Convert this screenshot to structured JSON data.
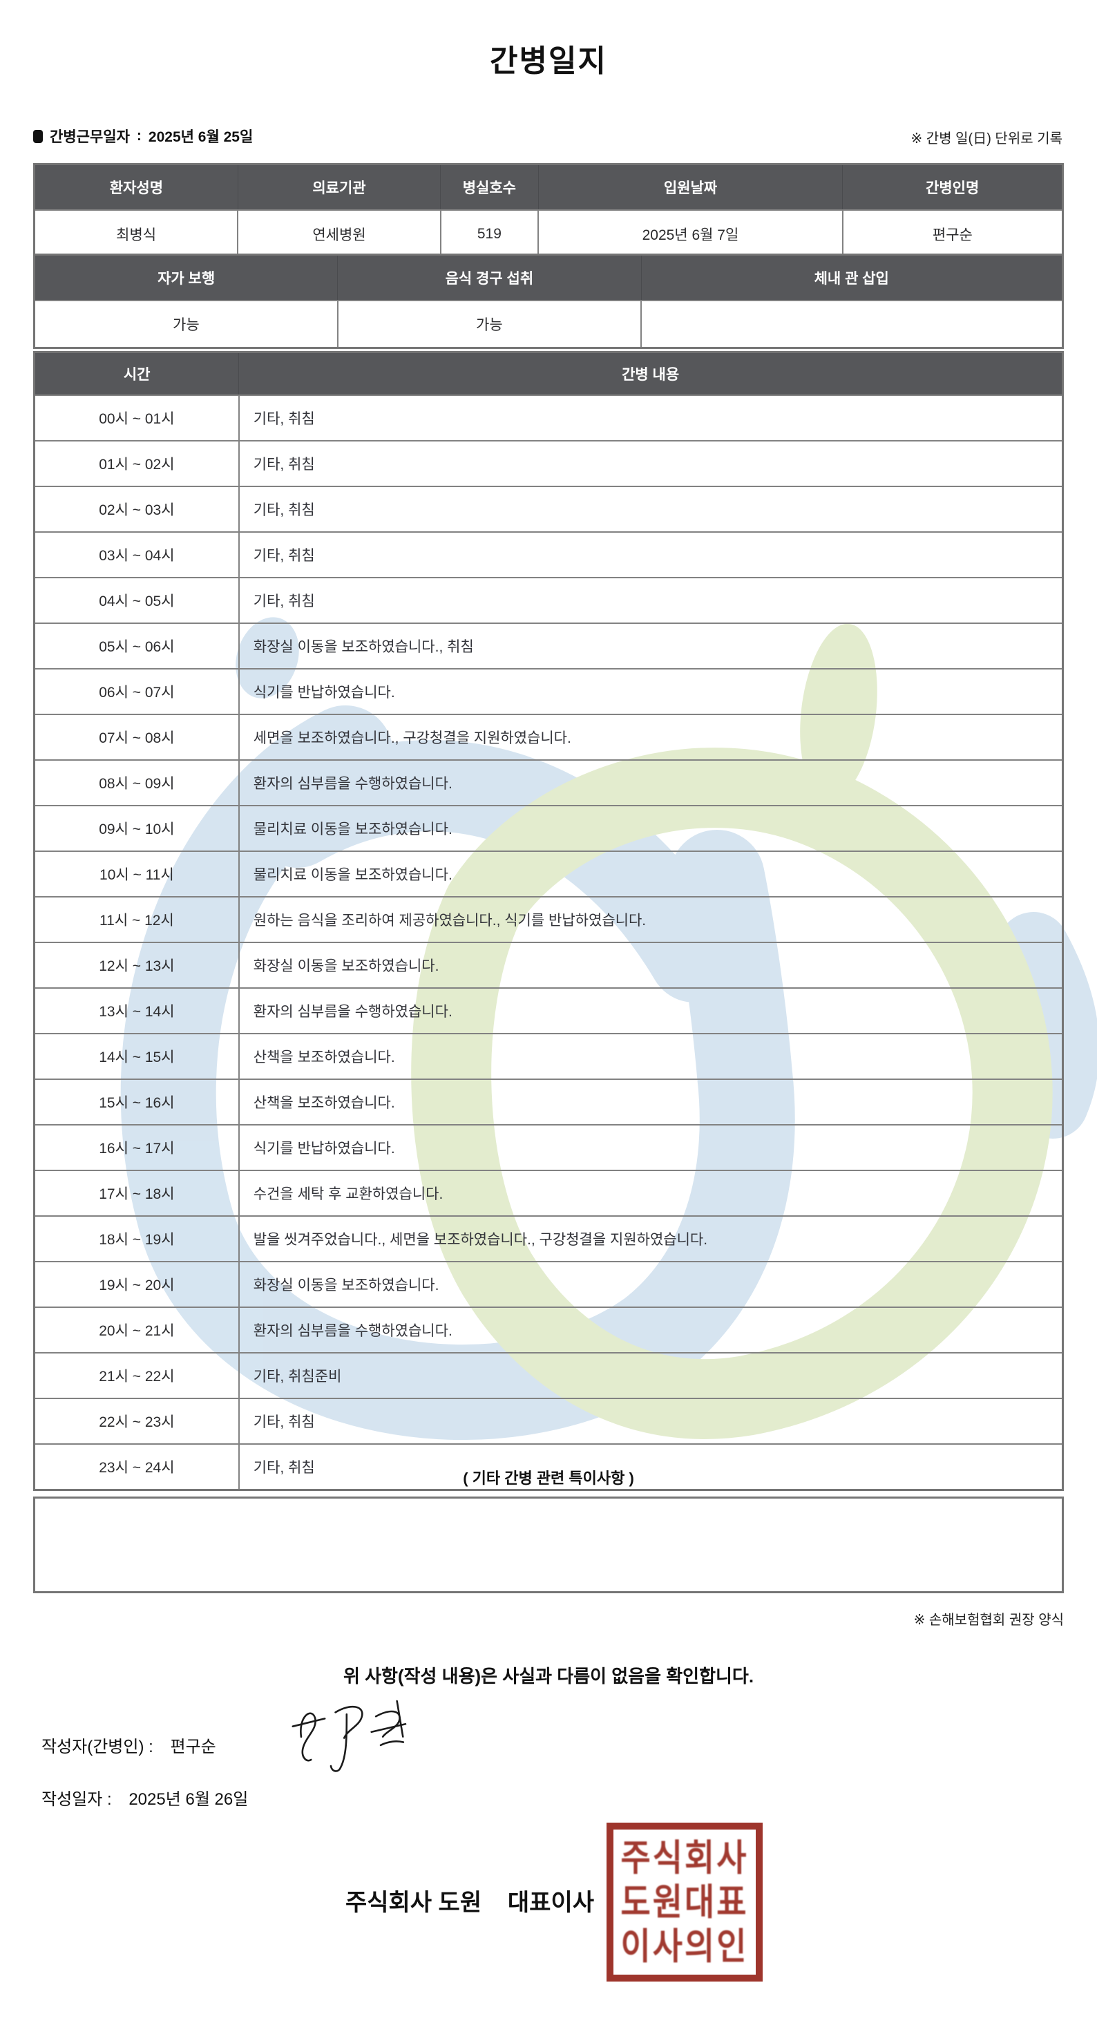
{
  "page": {
    "title": "간병일지"
  },
  "meta": {
    "work_date_label": "간병근무일자",
    "separator": ":",
    "work_date": "2025년 6월 25일",
    "unit_note": "※ 간병 일(日) 단위로 기록"
  },
  "patient_table": {
    "headers": [
      "환자성명",
      "의료기관",
      "병실호수",
      "입원날짜",
      "간병인명"
    ],
    "values": [
      "최병식",
      "연세병원",
      "519",
      "2025년 6월 7일",
      "편구순"
    ]
  },
  "condition_table": {
    "headers": [
      "자가 보행",
      "음식 경구 섭취",
      "체내 관 삽입"
    ],
    "values": [
      "가능",
      "가능",
      ""
    ]
  },
  "care_table": {
    "headers": {
      "time": "시간",
      "content": "간병 내용"
    },
    "rows": [
      {
        "time": "00시 ~ 01시",
        "content": "기타, 취침"
      },
      {
        "time": "01시 ~ 02시",
        "content": "기타, 취침"
      },
      {
        "time": "02시 ~ 03시",
        "content": "기타, 취침"
      },
      {
        "time": "03시 ~ 04시",
        "content": "기타, 취침"
      },
      {
        "time": "04시 ~ 05시",
        "content": "기타, 취침"
      },
      {
        "time": "05시 ~ 06시",
        "content": "화장실 이동을 보조하였습니다., 취침"
      },
      {
        "time": "06시 ~ 07시",
        "content": "식기를 반납하였습니다."
      },
      {
        "time": "07시 ~ 08시",
        "content": "세면을 보조하였습니다., 구강청결을 지원하였습니다."
      },
      {
        "time": "08시 ~ 09시",
        "content": "환자의 심부름을 수행하였습니다."
      },
      {
        "time": "09시 ~ 10시",
        "content": "물리치료 이동을 보조하였습니다."
      },
      {
        "time": "10시 ~ 11시",
        "content": "물리치료 이동을 보조하였습니다."
      },
      {
        "time": "11시 ~ 12시",
        "content": "원하는 음식을 조리하여 제공하였습니다., 식기를 반납하였습니다."
      },
      {
        "time": "12시 ~ 13시",
        "content": "화장실 이동을 보조하였습니다."
      },
      {
        "time": "13시 ~ 14시",
        "content": "환자의 심부름을 수행하였습니다."
      },
      {
        "time": "14시 ~ 15시",
        "content": "산책을 보조하였습니다."
      },
      {
        "time": "15시 ~ 16시",
        "content": "산책을 보조하였습니다."
      },
      {
        "time": "16시 ~ 17시",
        "content": "식기를 반납하였습니다."
      },
      {
        "time": "17시 ~ 18시",
        "content": "수건을 세탁 후 교환하였습니다."
      },
      {
        "time": "18시 ~ 19시",
        "content": "발을 씻겨주었습니다., 세면을 보조하였습니다., 구강청결을 지원하였습니다."
      },
      {
        "time": "19시 ~ 20시",
        "content": "화장실 이동을 보조하였습니다."
      },
      {
        "time": "20시 ~ 21시",
        "content": "환자의 심부름을 수행하였습니다."
      },
      {
        "time": "21시 ~ 22시",
        "content": "기타, 취침준비"
      },
      {
        "time": "22시 ~ 23시",
        "content": "기타, 취침"
      },
      {
        "time": "23시 ~ 24시",
        "content": "기타, 취침"
      }
    ]
  },
  "notes": {
    "title": "( 기타 간병 관련 특이사항 )",
    "content": "",
    "form_note": "※ 손해보험협회 권장 양식"
  },
  "footer": {
    "confirmation": "위 사항(작성 내용)은 사실과 다름이 없음을 확인합니다.",
    "writer_label": "작성자(간병인) :",
    "writer_name": "편구순",
    "date_label": "작성일자 :",
    "written_date": "2025년 6월 26일",
    "company_line": "주식회사 도원    대표이사",
    "stamp_lines": [
      "주식회사",
      "도원대표",
      "이사의인"
    ]
  },
  "colors": {
    "table_header_bg": "#56575a",
    "table_border": "#828282",
    "stamp_red": "#9e352c",
    "watermark_blue": "#cfe0ee",
    "watermark_green": "#dfe9c6"
  }
}
